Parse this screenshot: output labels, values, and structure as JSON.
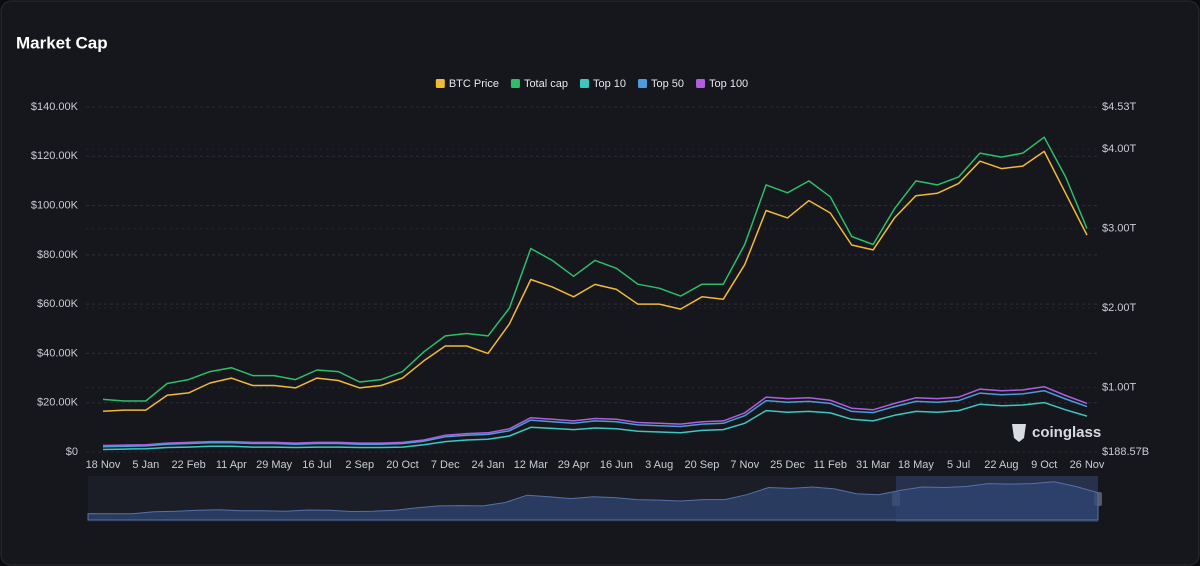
{
  "chart_data": {
    "type": "line",
    "title": "Market Cap",
    "watermark": "coinglass",
    "categories": [
      "18 Nov",
      null,
      "5 Jan",
      null,
      "22 Feb",
      null,
      "11 Apr",
      null,
      "29 May",
      null,
      "16 Jul",
      null,
      "2 Sep",
      null,
      "20 Oct",
      null,
      "7 Dec",
      null,
      "24 Jan",
      null,
      "12 Mar",
      null,
      "29 Apr",
      null,
      "16 Jun",
      null,
      "3 Aug",
      null,
      "20 Sep",
      null,
      "7 Nov",
      null,
      "25 Dec",
      null,
      "11 Feb",
      null,
      "31 Mar",
      null,
      "18 May",
      null,
      "5 Jul",
      null,
      "22 Aug",
      null,
      "9 Oct",
      null,
      "26 Nov"
    ],
    "ylim": [
      0,
      140000
    ],
    "yticks": [
      {
        "value": 0,
        "label": "$0"
      },
      {
        "value": 20000,
        "label": "$20.00K"
      },
      {
        "value": 40000,
        "label": "$40.00K"
      },
      {
        "value": 60000,
        "label": "$60.00K"
      },
      {
        "value": 80000,
        "label": "$80.00K"
      },
      {
        "value": 100000,
        "label": "$100.00K"
      },
      {
        "value": 120000,
        "label": "$120.00K"
      },
      {
        "value": 140000,
        "label": "$140.00K"
      }
    ],
    "y2lim": [
      188.57,
      4530
    ],
    "y2ticks": [
      {
        "value": 188.57,
        "label": "$188.57B"
      },
      {
        "value": 1000,
        "label": "$1.00T"
      },
      {
        "value": 2000,
        "label": "$2.00T"
      },
      {
        "value": 3000,
        "label": "$3.00T"
      },
      {
        "value": 4000,
        "label": "$4.00T"
      },
      {
        "value": 4530,
        "label": "$4.53T"
      }
    ],
    "grid": true,
    "legend": "top",
    "series": [
      {
        "name": "BTC Price",
        "color": "#f0b93a",
        "values": [
          16500,
          17000,
          17000,
          23000,
          24000,
          28000,
          30000,
          27000,
          27000,
          26000,
          30000,
          29000,
          26000,
          27000,
          30000,
          37000,
          43000,
          43000,
          40000,
          52000,
          70000,
          67000,
          63000,
          68000,
          66000,
          60000,
          60000,
          58000,
          63000,
          62000,
          76000,
          98000,
          95000,
          102000,
          97000,
          84000,
          82000,
          95000,
          104000,
          105000,
          109000,
          118000,
          115000,
          116000,
          122000,
          105000,
          88000
        ]
      },
      {
        "name": "Total cap",
        "color": "#2ebd6b",
        "axis": "y2",
        "values": [
          850,
          830,
          830,
          1050,
          1100,
          1200,
          1250,
          1150,
          1150,
          1100,
          1220,
          1200,
          1070,
          1100,
          1200,
          1450,
          1650,
          1680,
          1650,
          2000,
          2750,
          2600,
          2400,
          2600,
          2500,
          2300,
          2250,
          2150,
          2300,
          2300,
          2800,
          3550,
          3450,
          3600,
          3400,
          2900,
          2800,
          3250,
          3600,
          3550,
          3650,
          3950,
          3900,
          3950,
          4150,
          3650,
          3000
        ]
      },
      {
        "name": "Top 10",
        "color": "#3cc7c0",
        "axis": "y2",
        "values": [
          220,
          225,
          230,
          245,
          250,
          260,
          260,
          250,
          250,
          245,
          250,
          250,
          245,
          245,
          250,
          280,
          320,
          340,
          350,
          390,
          500,
          485,
          470,
          490,
          480,
          450,
          440,
          430,
          460,
          470,
          550,
          710,
          690,
          700,
          680,
          600,
          580,
          650,
          700,
          690,
          710,
          790,
          770,
          780,
          810,
          720,
          640
        ]
      },
      {
        "name": "Top 50",
        "color": "#4b9cdc",
        "axis": "y2",
        "values": [
          255,
          260,
          265,
          285,
          295,
          305,
          305,
          295,
          295,
          285,
          295,
          295,
          285,
          285,
          295,
          325,
          380,
          400,
          410,
          455,
          590,
          570,
          550,
          580,
          570,
          530,
          520,
          510,
          540,
          550,
          645,
          835,
          815,
          825,
          800,
          700,
          685,
          760,
          825,
          815,
          835,
          930,
          910,
          920,
          960,
          855,
          760
        ]
      },
      {
        "name": "Top 100",
        "color": "#b05ee0",
        "axis": "y2",
        "values": [
          270,
          275,
          280,
          300,
          310,
          320,
          320,
          310,
          310,
          300,
          310,
          310,
          300,
          300,
          310,
          340,
          400,
          420,
          430,
          480,
          620,
          600,
          580,
          610,
          600,
          560,
          550,
          540,
          570,
          580,
          680,
          880,
          860,
          870,
          840,
          740,
          720,
          800,
          870,
          860,
          880,
          980,
          960,
          970,
          1010,
          900,
          800
        ]
      }
    ]
  }
}
